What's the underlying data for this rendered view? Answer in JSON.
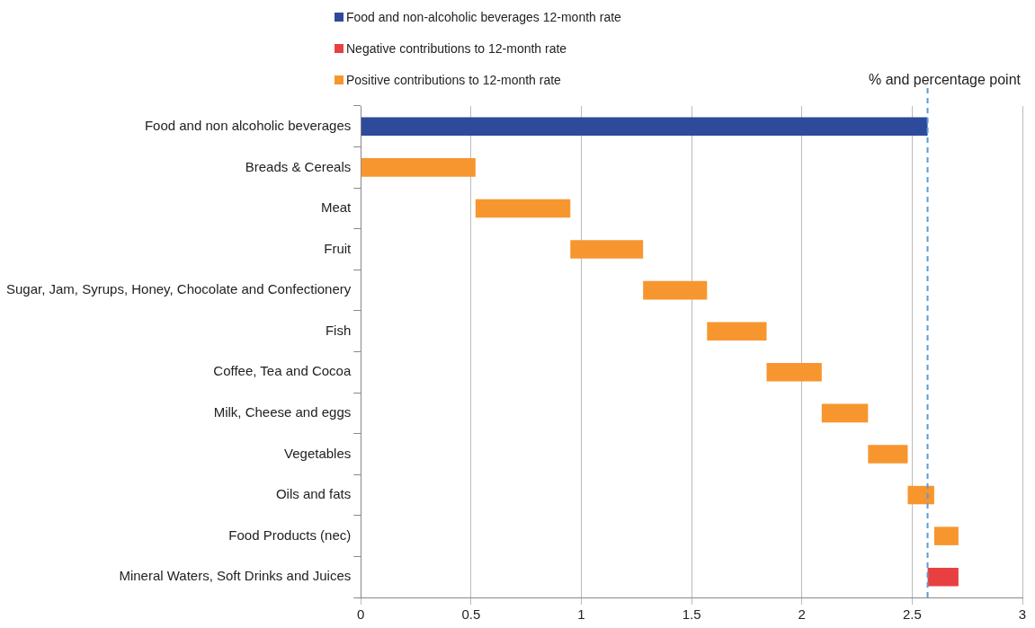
{
  "chart_data": {
    "type": "bar",
    "orientation": "horizontal",
    "xlabel": "% and percentage point",
    "categories": [
      "Food and non alcoholic beverages",
      "Breads & Cereals",
      "Meat",
      "Fruit",
      "Sugar, Jam, Syrups, Honey, Chocolate and Confectionery",
      "Fish",
      "Coffee, Tea and Cocoa",
      "Milk, Cheese and eggs",
      "Vegetables",
      "Oils and fats",
      "Food Products (nec)",
      "Mineral Waters, Soft Drinks and Juices"
    ],
    "series": [
      {
        "name": "Food and non-alcoholic beverages 12-month rate",
        "color": "#2e4a9a",
        "values": [
          2.57,
          null,
          null,
          null,
          null,
          null,
          null,
          null,
          null,
          null,
          null,
          null
        ]
      },
      {
        "name": "Negative contributions to 12-month rate",
        "color": "#e84040",
        "base": [
          null,
          null,
          null,
          null,
          null,
          null,
          null,
          null,
          null,
          null,
          null,
          2.71
        ],
        "values": [
          null,
          null,
          null,
          null,
          null,
          null,
          null,
          null,
          null,
          null,
          null,
          -0.14
        ]
      },
      {
        "name": "Positive contributions to 12-month rate",
        "color": "#f7962f",
        "base": [
          null,
          0,
          0.52,
          0.95,
          1.28,
          1.57,
          1.84,
          2.09,
          2.3,
          2.48,
          2.6,
          null
        ],
        "values": [
          null,
          0.52,
          0.43,
          0.33,
          0.29,
          0.27,
          0.25,
          0.21,
          0.18,
          0.12,
          0.11,
          null
        ]
      }
    ],
    "xlim": [
      0,
      3
    ],
    "xticks": [
      0,
      0.5,
      1,
      1.5,
      2,
      2.5,
      3
    ],
    "ref_lines": [
      {
        "axis": "x",
        "value": 2.57,
        "color": "#5b9bd5",
        "line_style": "dashed"
      }
    ],
    "grid": "x",
    "legend": "top left"
  }
}
